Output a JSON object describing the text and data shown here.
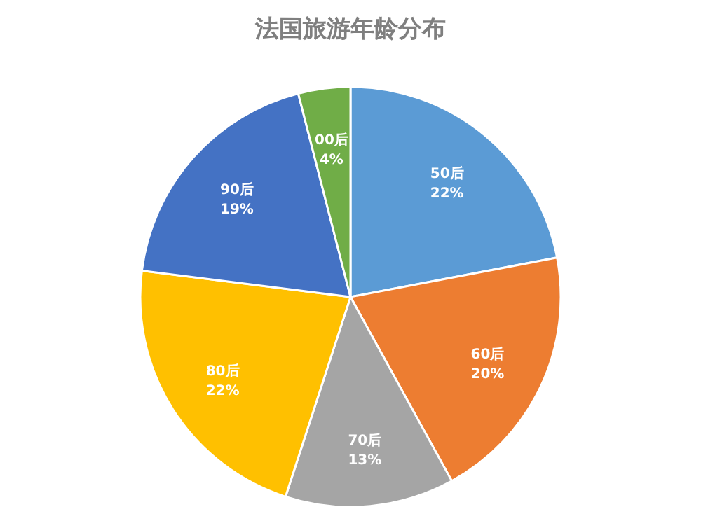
{
  "chart_data": {
    "type": "pie",
    "title": "法国旅游年龄分布",
    "categories": [
      "50后",
      "60后",
      "70后",
      "80后",
      "90后",
      "00后"
    ],
    "values": [
      22,
      20,
      13,
      22,
      19,
      4
    ],
    "colors": [
      "#5b9bd5",
      "#ed7d31",
      "#a5a5a5",
      "#ffc000",
      "#4472c4",
      "#70ad47"
    ],
    "value_labels": [
      "22%",
      "20%",
      "13%",
      "22%",
      "19%",
      "4%"
    ]
  }
}
